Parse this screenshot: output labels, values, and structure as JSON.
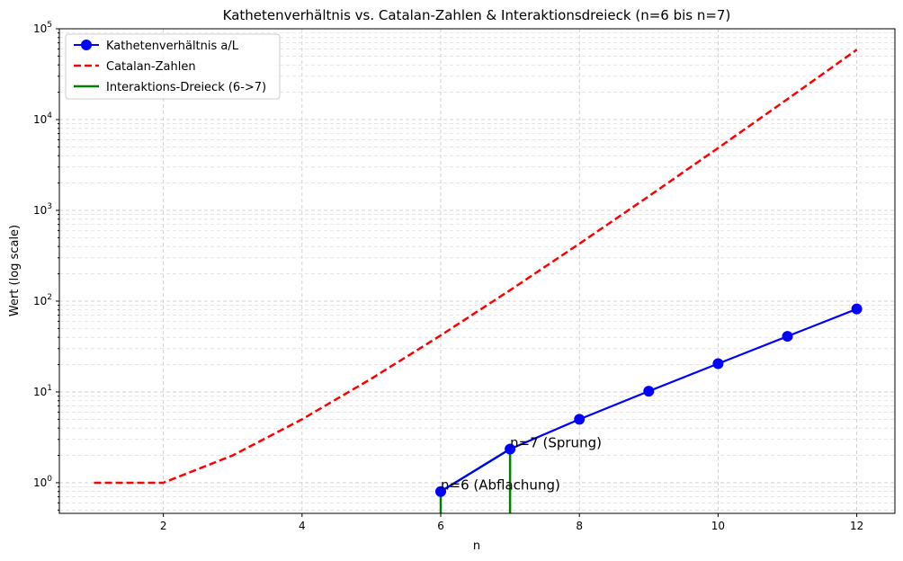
{
  "chart_data": {
    "type": "line",
    "title": "Kathetenverhältnis vs. Catalan-Zahlen & Interaktionsdreieck (n=6 bis n=7)",
    "xlabel": "n",
    "ylabel": "Wert (log scale)",
    "xlim": [
      0.5,
      12.55
    ],
    "ylim": [
      0.46,
      100000
    ],
    "yscale": "log",
    "grid": "both (dashed, incl. minor on y)",
    "legend_position": "top-left",
    "x_ticks": [
      2,
      4,
      6,
      8,
      10,
      12
    ],
    "x_tick_labels": [
      "2",
      "4",
      "6",
      "8",
      "10",
      "12"
    ],
    "y_ticks": [
      1,
      10,
      100,
      1000,
      10000,
      100000
    ],
    "y_tick_labels": [
      {
        "base": "10",
        "exp": "0"
      },
      {
        "base": "10",
        "exp": "1"
      },
      {
        "base": "10",
        "exp": "2"
      },
      {
        "base": "10",
        "exp": "3"
      },
      {
        "base": "10",
        "exp": "4"
      },
      {
        "base": "10",
        "exp": "5"
      }
    ],
    "series": [
      {
        "name": "Kathetenverhältnis a/L",
        "color": "#0000ff",
        "style": "solid-with-markers",
        "x": [
          6,
          7,
          8,
          9,
          10,
          11,
          12
        ],
        "values": [
          0.8,
          2.35,
          5.0,
          10.2,
          20.5,
          41,
          82
        ]
      },
      {
        "name": "Catalan-Zahlen",
        "color": "#ff0000",
        "style": "dashed",
        "x": [
          1,
          2,
          3,
          4,
          5,
          6,
          7,
          8,
          9,
          10,
          11,
          12
        ],
        "values": [
          1,
          1,
          2,
          5,
          14,
          42,
          132,
          429,
          1430,
          4862,
          16796,
          58786
        ]
      },
      {
        "name": "Interaktions-Dreieck (6->7)",
        "color": "#008000",
        "style": "solid",
        "x": [
          6,
          6,
          7,
          7
        ],
        "values": [
          0.3,
          0.8,
          2.35,
          0.3
        ]
      }
    ],
    "annotations": [
      {
        "text": "n=6 (Abflachung)",
        "x": 6,
        "y": 0.8
      },
      {
        "text": "n=7 (Sprung)",
        "x": 7,
        "y": 2.35
      }
    ]
  }
}
